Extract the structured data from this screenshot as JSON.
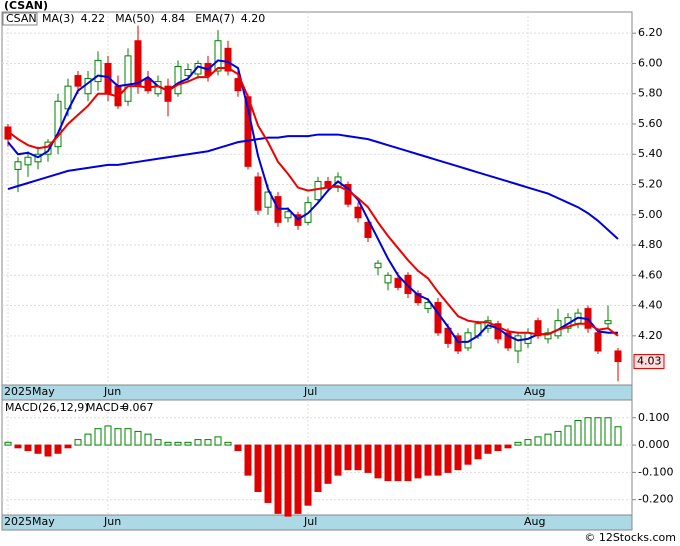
{
  "chart_data": [
    {
      "type": "candlestick",
      "title": "(CSAN)",
      "categories": [
        "2025May",
        null,
        null,
        null,
        null,
        null,
        null,
        null,
        null,
        null,
        "Jun",
        null,
        null,
        null,
        null,
        null,
        null,
        null,
        null,
        null,
        null,
        null,
        null,
        null,
        null,
        null,
        null,
        null,
        null,
        null,
        "Jul",
        null,
        null,
        null,
        null,
        null,
        null,
        null,
        null,
        null,
        null,
        null,
        null,
        null,
        null,
        null,
        null,
        null,
        null,
        null,
        null,
        null,
        "Aug",
        null,
        null,
        null,
        null,
        null,
        null,
        null,
        null,
        null
      ],
      "series": [
        {
          "name": "CSAN",
          "up_color": "#008000",
          "down_color": "#e00000",
          "open": [
            5.58,
            5.3,
            5.33,
            5.35,
            5.4,
            5.45,
            5.7,
            5.92,
            5.8,
            5.88,
            6.0,
            5.85,
            5.75,
            6.15,
            5.9,
            5.8,
            5.85,
            5.8,
            5.92,
            5.93,
            6.0,
            5.95,
            6.1,
            5.9,
            5.78,
            5.25,
            5.05,
            5.12,
            4.98,
            5.0,
            4.95,
            5.1,
            5.22,
            5.18,
            5.2,
            5.05,
            4.95,
            4.65,
            4.55,
            4.58,
            4.6,
            4.48,
            4.38,
            4.42,
            4.25,
            4.2,
            4.12,
            4.2,
            4.25,
            4.28,
            4.22,
            4.1,
            4.15,
            4.3,
            4.18,
            4.2,
            4.25,
            4.28,
            4.38,
            4.22,
            4.28,
            4.1
          ],
          "high": [
            5.6,
            5.38,
            5.42,
            5.45,
            5.5,
            5.8,
            5.9,
            5.95,
            5.95,
            6.08,
            6.05,
            5.92,
            6.1,
            6.25,
            5.95,
            5.92,
            5.9,
            6.02,
            6.0,
            6.02,
            6.05,
            6.22,
            6.15,
            5.95,
            5.8,
            5.28,
            5.2,
            5.15,
            5.05,
            5.02,
            5.12,
            5.25,
            5.25,
            5.28,
            5.22,
            5.08,
            4.98,
            4.7,
            4.62,
            4.62,
            4.62,
            4.5,
            4.45,
            4.45,
            4.28,
            4.22,
            4.25,
            4.3,
            4.33,
            4.3,
            4.25,
            4.22,
            4.25,
            4.32,
            4.25,
            4.38,
            4.35,
            4.38,
            4.4,
            4.25,
            4.4,
            4.12
          ],
          "low": [
            5.45,
            5.15,
            5.25,
            5.3,
            5.35,
            5.4,
            5.65,
            5.8,
            5.75,
            5.82,
            5.75,
            5.7,
            5.72,
            5.8,
            5.8,
            5.78,
            5.65,
            5.78,
            5.88,
            5.9,
            5.88,
            5.92,
            5.92,
            5.78,
            5.3,
            5.0,
            5.0,
            4.92,
            4.95,
            4.9,
            4.93,
            5.08,
            5.15,
            5.15,
            5.05,
            4.95,
            4.82,
            4.6,
            4.5,
            4.5,
            4.45,
            4.4,
            4.35,
            4.2,
            4.12,
            4.08,
            4.1,
            4.18,
            4.22,
            4.15,
            4.1,
            4.02,
            4.12,
            4.18,
            4.15,
            4.18,
            4.22,
            4.25,
            4.22,
            4.08,
            4.25,
            3.9
          ],
          "close": [
            5.5,
            5.35,
            5.38,
            5.4,
            5.48,
            5.75,
            5.85,
            5.85,
            5.9,
            6.02,
            5.8,
            5.72,
            6.05,
            5.85,
            5.82,
            5.88,
            5.75,
            5.98,
            5.96,
            6.0,
            5.92,
            6.15,
            5.95,
            5.82,
            5.32,
            5.03,
            5.15,
            4.95,
            5.02,
            4.93,
            5.08,
            5.22,
            5.18,
            5.25,
            5.07,
            4.98,
            4.85,
            4.68,
            4.6,
            4.52,
            4.48,
            4.42,
            4.42,
            4.22,
            4.15,
            4.1,
            4.22,
            4.28,
            4.3,
            4.18,
            4.12,
            4.2,
            4.22,
            4.2,
            4.22,
            4.3,
            4.32,
            4.35,
            4.25,
            4.1,
            4.3,
            4.03
          ]
        }
      ],
      "lines": [
        {
          "name": "MA(3)",
          "color": "#0000dd",
          "latest_label": "4.22",
          "values": [
            5.48,
            5.4,
            5.41,
            5.38,
            5.42,
            5.54,
            5.69,
            5.82,
            5.87,
            5.92,
            5.91,
            5.85,
            5.86,
            5.87,
            5.91,
            5.85,
            5.82,
            5.87,
            5.9,
            5.98,
            5.96,
            6.02,
            6.01,
            5.97,
            5.7,
            5.39,
            5.17,
            5.04,
            5.04,
            4.97,
            5.01,
            5.08,
            5.16,
            5.22,
            5.17,
            5.1,
            4.97,
            4.84,
            4.71,
            4.6,
            4.53,
            4.47,
            4.44,
            4.35,
            4.26,
            4.16,
            4.16,
            4.2,
            4.27,
            4.25,
            4.2,
            4.17,
            4.18,
            4.21,
            4.21,
            4.24,
            4.28,
            4.32,
            4.31,
            4.23,
            4.22,
            4.22
          ]
        },
        {
          "name": "MA(50)",
          "color": "#0000dd",
          "latest_label": "4.84",
          "values": [
            5.17,
            5.19,
            5.21,
            5.23,
            5.25,
            5.27,
            5.29,
            5.3,
            5.31,
            5.32,
            5.33,
            5.33,
            5.34,
            5.35,
            5.36,
            5.37,
            5.38,
            5.39,
            5.4,
            5.41,
            5.42,
            5.44,
            5.46,
            5.48,
            5.49,
            5.5,
            5.51,
            5.51,
            5.52,
            5.52,
            5.52,
            5.53,
            5.53,
            5.53,
            5.52,
            5.51,
            5.5,
            5.48,
            5.46,
            5.44,
            5.42,
            5.4,
            5.38,
            5.36,
            5.34,
            5.32,
            5.3,
            5.28,
            5.26,
            5.24,
            5.22,
            5.2,
            5.18,
            5.16,
            5.14,
            5.11,
            5.08,
            5.05,
            5.01,
            4.96,
            4.9,
            4.84
          ]
        },
        {
          "name": "EMA(7)",
          "color": "#ee0000",
          "latest_label": "4.20",
          "values": [
            5.55,
            5.5,
            5.46,
            5.44,
            5.45,
            5.52,
            5.6,
            5.66,
            5.72,
            5.8,
            5.8,
            5.78,
            5.85,
            5.85,
            5.84,
            5.85,
            5.82,
            5.86,
            5.88,
            5.91,
            5.91,
            5.97,
            5.97,
            5.93,
            5.78,
            5.59,
            5.48,
            5.35,
            5.27,
            5.18,
            5.16,
            5.17,
            5.18,
            5.19,
            5.16,
            5.11,
            5.05,
            4.95,
            4.86,
            4.78,
            4.7,
            4.63,
            4.58,
            4.49,
            4.41,
            4.33,
            4.3,
            4.29,
            4.29,
            4.26,
            4.23,
            4.22,
            4.22,
            4.21,
            4.21,
            4.24,
            4.26,
            4.28,
            4.28,
            4.24,
            4.25,
            4.2
          ]
        }
      ],
      "ylim": [
        3.875,
        6.34
      ],
      "yticks": [
        {
          "value": 4.2,
          "label": "4.20"
        },
        {
          "value": 4.4,
          "label": "4.40"
        },
        {
          "value": 4.6,
          "label": "4.60"
        },
        {
          "value": 4.8,
          "label": "4.80"
        },
        {
          "value": 5.0,
          "label": "5.00"
        },
        {
          "value": 5.2,
          "label": "5.20"
        },
        {
          "value": 5.4,
          "label": "5.40"
        },
        {
          "value": 5.6,
          "label": "5.60"
        },
        {
          "value": 5.8,
          "label": "5.80"
        },
        {
          "value": 6.0,
          "label": "6.00"
        },
        {
          "value": 6.2,
          "label": "6.20"
        }
      ],
      "grid": true
    },
    {
      "type": "bar",
      "title": "MACD(26,12,9)",
      "legend_label": "MACD=",
      "up_color": "#008000",
      "down_color": "#e00000",
      "values": [
        0.01,
        -0.01,
        -0.02,
        -0.03,
        -0.04,
        -0.03,
        -0.01,
        0.02,
        0.04,
        0.06,
        0.07,
        0.06,
        0.06,
        0.05,
        0.04,
        0.02,
        0.01,
        0.01,
        0.01,
        0.02,
        0.02,
        0.03,
        0.01,
        -0.02,
        -0.11,
        -0.17,
        -0.21,
        -0.25,
        -0.26,
        -0.25,
        -0.22,
        -0.17,
        -0.14,
        -0.11,
        -0.09,
        -0.09,
        -0.1,
        -0.12,
        -0.13,
        -0.13,
        -0.13,
        -0.12,
        -0.11,
        -0.11,
        -0.1,
        -0.09,
        -0.07,
        -0.05,
        -0.03,
        -0.02,
        -0.01,
        0.01,
        0.02,
        0.03,
        0.04,
        0.05,
        0.07,
        0.09,
        0.1,
        0.1,
        0.1,
        0.067
      ],
      "ylim": [
        -0.256,
        0.165
      ],
      "yticks": [
        {
          "value": -0.2,
          "label": "-0.200"
        },
        {
          "value": -0.1,
          "label": "-0.100"
        },
        {
          "value": 0,
          "label": "0.000"
        },
        {
          "value": 0.1,
          "label": "0.100"
        }
      ],
      "grid": true
    }
  ],
  "footer": "© 12Stocks.com"
}
